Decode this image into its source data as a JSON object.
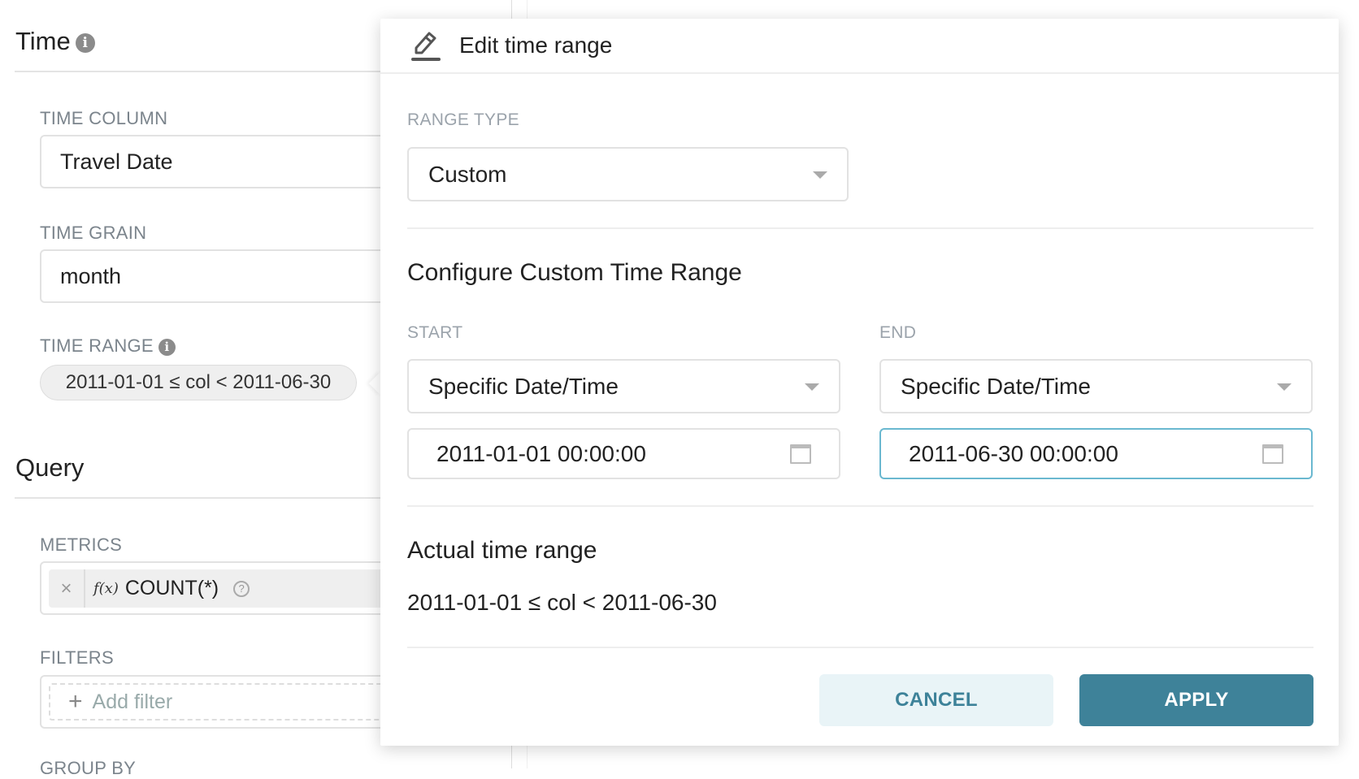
{
  "sidebar": {
    "time_title": "Time",
    "time_column": {
      "label": "TIME COLUMN",
      "value": "Travel Date"
    },
    "time_grain": {
      "label": "TIME GRAIN",
      "value": "month"
    },
    "time_range": {
      "label": "TIME RANGE",
      "value": "2011-01-01 ≤ col < 2011-06-30"
    },
    "query_title": "Query",
    "metrics": {
      "label": "METRICS",
      "fx": "f(x)",
      "value": "COUNT(*)",
      "remove": "×",
      "help": "?"
    },
    "filters": {
      "label": "FILTERS",
      "add_icon": "+",
      "add_label": "Add filter"
    },
    "group_by_label": "GROUP BY"
  },
  "popover": {
    "title": "Edit time range",
    "range_type": {
      "label": "RANGE TYPE",
      "value": "Custom"
    },
    "configure_title": "Configure Custom Time Range",
    "start": {
      "label": "START",
      "mode": "Specific Date/Time",
      "value": "2011-01-01 00:00:00"
    },
    "end": {
      "label": "END",
      "mode": "Specific Date/Time",
      "value": "2011-06-30 00:00:00"
    },
    "actual_title": "Actual time range",
    "actual_value": "2011-01-01 ≤ col < 2011-06-30",
    "cancel_label": "CANCEL",
    "apply_label": "APPLY"
  },
  "colors": {
    "accent": "#3e8299",
    "cancel_bg": "#e9f4f7",
    "focus_border": "#6ab8d0"
  }
}
